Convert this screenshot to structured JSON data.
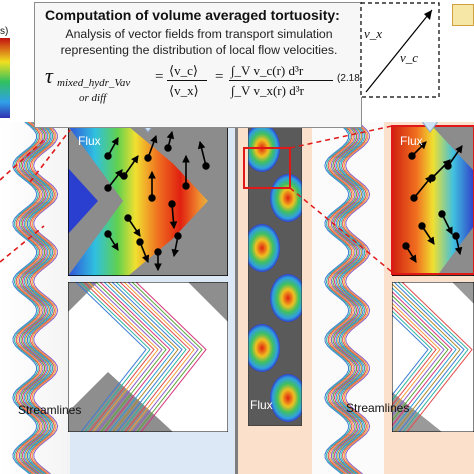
{
  "textbox": {
    "title": "Computation of volume averaged tortuosity:",
    "line1": "Analysis of vector fields from transport simulation",
    "line2": "representing the distribution of local flow velocities.",
    "tau": "τ",
    "tau_sub": "mixed_hydr_Vav",
    "tau_sub2": "or diff",
    "ratio_num": "⟨v_c⟩",
    "ratio_den": "⟨v_x⟩",
    "int_num": "∫_V v_c(r) d³r",
    "int_den": "∫_V v_x(r) d³r",
    "eq_number": "(2.18)"
  },
  "vector_box": {
    "vx_label": "v_x",
    "vc_label": "v_c"
  },
  "left": {
    "flux_label": "Flux",
    "streamlines_label": "Streamlines"
  },
  "right": {
    "flux_label_top": "Flux",
    "flux_label_bottom": "Flux",
    "streamlines_label": "Streamlines"
  },
  "colorbar": {
    "unit_fragment": "s)"
  },
  "colors": {
    "left_bg": "#dce8f6",
    "right_bg": "#fbe0cc",
    "channel_red": "#e02010",
    "channel_blue": "#2a3fd0"
  }
}
